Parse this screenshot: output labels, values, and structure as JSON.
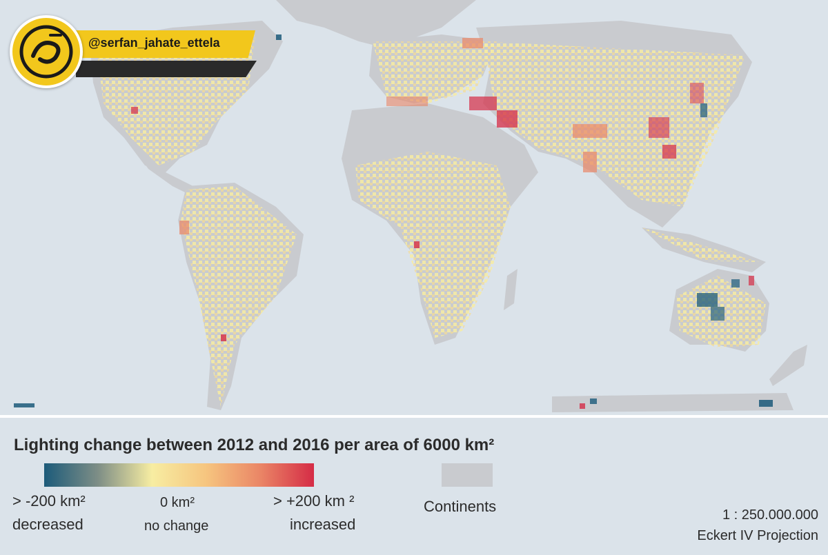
{
  "watermark": {
    "handle": "@serfan_jahate_ettela",
    "logo_icon": "ettela-logo-icon"
  },
  "legend": {
    "title": "Lighting change between 2012 and 2016 per area of 6000 km²",
    "ramp_colors": [
      "#1c5b7a",
      "#7e8e86",
      "#f7eda2",
      "#f6c57f",
      "#ea8666",
      "#d52c46"
    ],
    "left_value": "> -200 km²",
    "left_desc": "decreased",
    "center_value": "0 km²",
    "center_desc": "no change",
    "right_value": "> +200 km ²",
    "right_desc": "increased",
    "continents_label": "Continents",
    "continents_color": "#c9cbcf"
  },
  "map_info": {
    "scale": "1 : 250.000.000",
    "projection": "Eckert IV Projection"
  },
  "colors": {
    "ocean": "#dbe3ea",
    "land": "#c9cbcf",
    "no_change": "#f7eda2",
    "increase": "#d52c46",
    "decrease": "#1c5b7a"
  }
}
